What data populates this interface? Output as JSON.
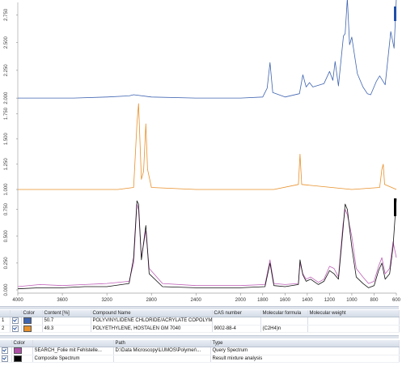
{
  "chart_data": {
    "type": "line",
    "x_axis": {
      "ticks": [
        4000,
        3600,
        3200,
        2800,
        2400,
        2000,
        1800,
        1600,
        1400,
        1200,
        1000,
        800,
        600
      ],
      "tick_labels": [
        "4000",
        "3600",
        "3200",
        "2800",
        "2400",
        "2000",
        "1800",
        "1600",
        "1400",
        "1200",
        "1000",
        "800",
        "600"
      ],
      "reversed": true
    },
    "panels": [
      {
        "name": "POLYVINYLIDENE CHLORIDE/ACRYLATE COPOLYMER",
        "color": "#3f64b0",
        "ylim": [
          1.95,
          2.84
        ],
        "yticks": [
          2.0,
          2.25,
          2.5,
          2.75
        ],
        "ytick_labels": [
          "2.000",
          "2.250",
          "2.500",
          "2.750"
        ],
        "points": [
          [
            4000,
            2.0
          ],
          [
            3500,
            2.0
          ],
          [
            3200,
            2.01
          ],
          [
            3000,
            2.02
          ],
          [
            2960,
            2.03
          ],
          [
            2800,
            2.01
          ],
          [
            2400,
            2.0
          ],
          [
            2000,
            2.0
          ],
          [
            1800,
            2.01
          ],
          [
            1760,
            2.09
          ],
          [
            1735,
            2.32
          ],
          [
            1710,
            2.05
          ],
          [
            1600,
            2.01
          ],
          [
            1470,
            2.04
          ],
          [
            1440,
            2.21
          ],
          [
            1410,
            2.1
          ],
          [
            1380,
            2.14
          ],
          [
            1350,
            2.1
          ],
          [
            1250,
            2.13
          ],
          [
            1200,
            2.24
          ],
          [
            1170,
            2.16
          ],
          [
            1150,
            2.33
          ],
          [
            1120,
            2.11
          ],
          [
            1075,
            2.56
          ],
          [
            1060,
            2.58
          ],
          [
            1040,
            2.9
          ],
          [
            1020,
            2.48
          ],
          [
            1000,
            2.55
          ],
          [
            950,
            2.22
          ],
          [
            900,
            2.1
          ],
          [
            860,
            2.04
          ],
          [
            830,
            2.03
          ],
          [
            780,
            2.15
          ],
          [
            750,
            2.2
          ],
          [
            700,
            2.12
          ],
          [
            650,
            2.6
          ],
          [
            620,
            2.45
          ],
          [
            600,
            2.9
          ]
        ]
      },
      {
        "name": "POLYETHYLENE, HOSTALEN GM 7040",
        "color": "#e8902a",
        "ylim": [
          0.92,
          1.85
        ],
        "yticks": [
          1.0,
          1.25,
          1.5,
          1.75
        ],
        "ytick_labels": [
          "1.000",
          "1.250",
          "1.500",
          "1.750"
        ],
        "points": [
          [
            4000,
            1.0
          ],
          [
            3100,
            1.0
          ],
          [
            2960,
            1.02
          ],
          [
            2930,
            1.65
          ],
          [
            2915,
            1.85
          ],
          [
            2890,
            1.1
          ],
          [
            2870,
            1.18
          ],
          [
            2850,
            1.65
          ],
          [
            2835,
            1.2
          ],
          [
            2800,
            1.02
          ],
          [
            2400,
            1.0
          ],
          [
            1700,
            1.0
          ],
          [
            1480,
            1.05
          ],
          [
            1465,
            1.35
          ],
          [
            1450,
            1.05
          ],
          [
            1000,
            1.0
          ],
          [
            750,
            1.02
          ],
          [
            730,
            1.2
          ],
          [
            718,
            1.25
          ],
          [
            705,
            1.05
          ],
          [
            600,
            1.0
          ]
        ]
      },
      {
        "name": "Composite Spectrum",
        "ylim": [
          -0.03,
          0.86
        ],
        "yticks": [
          0.0,
          0.25,
          0.5,
          0.75
        ],
        "ytick_labels": [
          "0.000",
          "0.250",
          "0.500",
          "0.750"
        ],
        "series": [
          {
            "name": "SEARCH_Folie mit Fehlstelle...",
            "color": "#c060b8",
            "points": [
              [
                4000,
                0.03
              ],
              [
                3800,
                0.05
              ],
              [
                3600,
                0.04
              ],
              [
                3400,
                0.05
              ],
              [
                3200,
                0.06
              ],
              [
                3000,
                0.08
              ],
              [
                2960,
                0.25
              ],
              [
                2930,
                0.8
              ],
              [
                2915,
                0.75
              ],
              [
                2890,
                0.3
              ],
              [
                2850,
                0.55
              ],
              [
                2820,
                0.2
              ],
              [
                2700,
                0.06
              ],
              [
                2400,
                0.04
              ],
              [
                2000,
                0.04
              ],
              [
                1780,
                0.05
              ],
              [
                1735,
                0.28
              ],
              [
                1700,
                0.06
              ],
              [
                1600,
                0.05
              ],
              [
                1480,
                0.06
              ],
              [
                1465,
                0.25
              ],
              [
                1440,
                0.15
              ],
              [
                1410,
                0.1
              ],
              [
                1370,
                0.12
              ],
              [
                1300,
                0.07
              ],
              [
                1250,
                0.1
              ],
              [
                1200,
                0.22
              ],
              [
                1160,
                0.2
              ],
              [
                1120,
                0.12
              ],
              [
                1080,
                0.6
              ],
              [
                1060,
                0.75
              ],
              [
                1040,
                0.7
              ],
              [
                1000,
                0.5
              ],
              [
                960,
                0.2
              ],
              [
                900,
                0.12
              ],
              [
                850,
                0.06
              ],
              [
                800,
                0.08
              ],
              [
                760,
                0.22
              ],
              [
                730,
                0.3
              ],
              [
                700,
                0.15
              ],
              [
                660,
                0.2
              ],
              [
                630,
                0.45
              ],
              [
                600,
                0.3
              ]
            ]
          },
          {
            "name": "Composite Spectrum",
            "color": "#111111",
            "points": [
              [
                4000,
                0.01
              ],
              [
                3800,
                0.02
              ],
              [
                3600,
                0.02
              ],
              [
                3400,
                0.03
              ],
              [
                3200,
                0.03
              ],
              [
                3000,
                0.06
              ],
              [
                2960,
                0.3
              ],
              [
                2930,
                0.83
              ],
              [
                2915,
                0.8
              ],
              [
                2890,
                0.28
              ],
              [
                2850,
                0.6
              ],
              [
                2820,
                0.15
              ],
              [
                2700,
                0.03
              ],
              [
                2400,
                0.02
              ],
              [
                2000,
                0.02
              ],
              [
                1780,
                0.03
              ],
              [
                1735,
                0.25
              ],
              [
                1700,
                0.04
              ],
              [
                1600,
                0.03
              ],
              [
                1480,
                0.05
              ],
              [
                1465,
                0.28
              ],
              [
                1440,
                0.14
              ],
              [
                1410,
                0.08
              ],
              [
                1370,
                0.1
              ],
              [
                1300,
                0.05
              ],
              [
                1250,
                0.08
              ],
              [
                1200,
                0.18
              ],
              [
                1160,
                0.15
              ],
              [
                1120,
                0.1
              ],
              [
                1080,
                0.55
              ],
              [
                1060,
                0.8
              ],
              [
                1040,
                0.75
              ],
              [
                1000,
                0.4
              ],
              [
                960,
                0.12
              ],
              [
                900,
                0.06
              ],
              [
                850,
                0.02
              ],
              [
                800,
                0.04
              ],
              [
                760,
                0.18
              ],
              [
                730,
                0.25
              ],
              [
                700,
                0.1
              ],
              [
                660,
                0.15
              ],
              [
                630,
                0.4
              ],
              [
                600,
                0.85
              ]
            ]
          }
        ]
      }
    ]
  },
  "results_table": {
    "headers": [
      "",
      "",
      "Color",
      "Content [%]",
      "Compound Name",
      "CAS number",
      "Molecular formula",
      "Molecular weight"
    ],
    "rows": [
      {
        "index": "1",
        "color": "#3f64b0",
        "content": "50.7",
        "name": "POLYVINYLIDENE CHLORIDE/ACRYLATE COPOLYMER",
        "cas": "",
        "formula": "",
        "weight": ""
      },
      {
        "index": "2",
        "color": "#e8902a",
        "content": "49.3",
        "name": "POLYETHYLENE, HOSTALEN GM 7040",
        "cas": "9002-88-4",
        "formula": "(C2H4)n",
        "weight": ""
      }
    ]
  },
  "spectra_table": {
    "headers": [
      "",
      "Color",
      "",
      "Path",
      "Type"
    ],
    "rows": [
      {
        "color": "#b04ea8",
        "name": "SEARCH_Folie mit Fehlstelle...",
        "path": "D:\\Data Microscopy\\LUMOS\\Polymer\\...",
        "type": "Query Spectrum"
      },
      {
        "color": "#000000",
        "name": "Composite Spectrum",
        "path": "",
        "type": "Result mixture analysis"
      }
    ]
  }
}
